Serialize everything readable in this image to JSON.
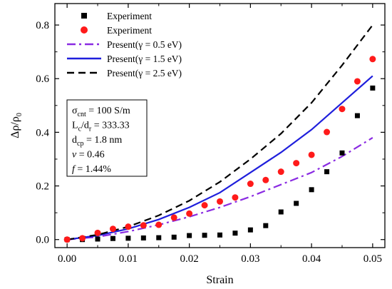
{
  "chart_data": {
    "type": "scatter",
    "xlabel": "Strain",
    "ylabel_main": "Δρ/ρ",
    "ylabel_sub": "0",
    "xlim": [
      -0.002,
      0.052
    ],
    "ylim": [
      -0.03,
      0.88
    ],
    "x_ticks": [
      0.0,
      0.01,
      0.02,
      0.03,
      0.04,
      0.05
    ],
    "x_tick_labels": [
      "0.00",
      "0.01",
      "0.02",
      "0.03",
      "0.04",
      "0.05"
    ],
    "y_ticks": [
      0.0,
      0.2,
      0.4,
      0.6,
      0.8
    ],
    "y_tick_labels": [
      "0.0",
      "0.2",
      "0.4",
      "0.6",
      "0.8"
    ],
    "grid": false,
    "legend_position": "top-left",
    "series": [
      {
        "name": "Experiment",
        "kind": "scatter",
        "marker": "square",
        "color": "#000000",
        "x": [
          0.0,
          0.0025,
          0.005,
          0.0075,
          0.01,
          0.0125,
          0.015,
          0.0175,
          0.02,
          0.0225,
          0.025,
          0.0275,
          0.03,
          0.0325,
          0.035,
          0.0375,
          0.04,
          0.0425,
          0.045,
          0.0475,
          0.05
        ],
        "y": [
          0.0,
          0.0,
          0.002,
          0.004,
          0.005,
          0.006,
          0.007,
          0.009,
          0.015,
          0.016,
          0.017,
          0.024,
          0.036,
          0.052,
          0.103,
          0.135,
          0.186,
          0.253,
          0.323,
          0.462,
          0.565
        ]
      },
      {
        "name": "Experiment",
        "kind": "scatter",
        "marker": "circle",
        "color": "#ff1a1a",
        "x": [
          0.0,
          0.0025,
          0.005,
          0.0075,
          0.01,
          0.0125,
          0.015,
          0.0175,
          0.02,
          0.0225,
          0.025,
          0.0275,
          0.03,
          0.0325,
          0.035,
          0.0375,
          0.04,
          0.0425,
          0.045,
          0.0475,
          0.05
        ],
        "y": [
          0.0,
          0.005,
          0.025,
          0.04,
          0.048,
          0.053,
          0.055,
          0.082,
          0.097,
          0.128,
          0.142,
          0.157,
          0.208,
          0.222,
          0.253,
          0.285,
          0.316,
          0.401,
          0.487,
          0.59,
          0.673
        ]
      },
      {
        "name": "Present(γ = 0.5 eV)",
        "kind": "line",
        "dash": "dashdot",
        "color": "#8a2be2",
        "x": [
          0.0,
          0.005,
          0.01,
          0.015,
          0.02,
          0.025,
          0.03,
          0.035,
          0.04,
          0.045,
          0.05
        ],
        "y": [
          0.0,
          0.01,
          0.03,
          0.055,
          0.085,
          0.12,
          0.16,
          0.205,
          0.25,
          0.31,
          0.38
        ]
      },
      {
        "name": "Present(γ = 1.5 eV)",
        "kind": "line",
        "dash": "solid",
        "color": "#1f1fdc",
        "x": [
          0.0,
          0.005,
          0.01,
          0.015,
          0.02,
          0.025,
          0.03,
          0.035,
          0.04,
          0.045,
          0.05
        ],
        "y": [
          0.0,
          0.015,
          0.04,
          0.075,
          0.12,
          0.175,
          0.25,
          0.325,
          0.41,
          0.51,
          0.61
        ]
      },
      {
        "name": "Present(γ = 2.5 eV)",
        "kind": "line",
        "dash": "dashed",
        "color": "#000000",
        "x": [
          0.0,
          0.005,
          0.01,
          0.015,
          0.02,
          0.025,
          0.03,
          0.035,
          0.04,
          0.045,
          0.05
        ],
        "y": [
          0.0,
          0.018,
          0.048,
          0.09,
          0.145,
          0.215,
          0.3,
          0.395,
          0.51,
          0.65,
          0.8
        ]
      }
    ],
    "annotation": {
      "lines": [
        [
          {
            "t": "σ"
          },
          {
            "t": "cnt",
            "sub": true
          },
          {
            "t": " = 100 S/m"
          }
        ],
        [
          {
            "t": "L"
          },
          {
            "t": "c",
            "sub": true
          },
          {
            "t": "/d"
          },
          {
            "t": "r",
            "sub": true
          },
          {
            "t": " = 333.33"
          }
        ],
        [
          {
            "t": "d"
          },
          {
            "t": "cp",
            "sub": true
          },
          {
            "t": " = 1.8 nm"
          }
        ],
        [
          {
            "t": "v",
            "italic": true
          },
          {
            "t": " = 0.46"
          }
        ],
        [
          {
            "t": "f",
            "italic": true
          },
          {
            "t": " = 1.44%"
          }
        ]
      ]
    }
  }
}
